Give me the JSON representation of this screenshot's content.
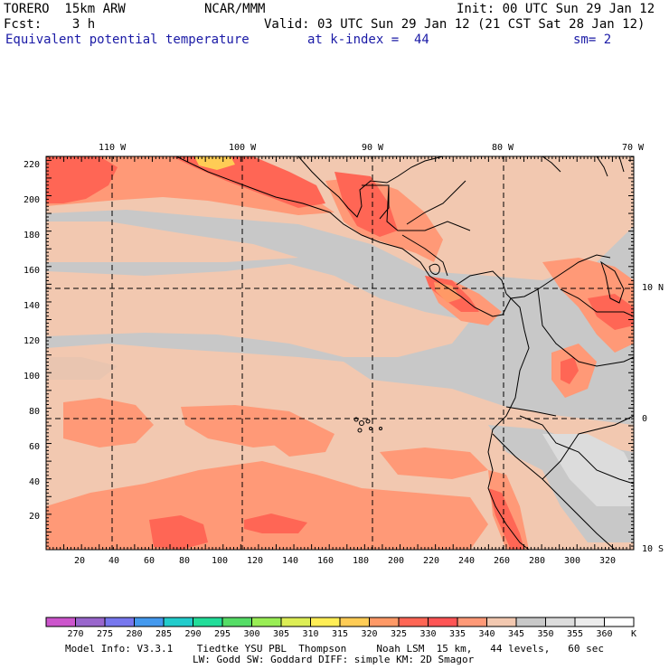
{
  "header": {
    "model": "TORERO  15km ARW",
    "center": "NCAR/MMM",
    "init": "Init: 00 UTC Sun 29 Jan 12",
    "fcst": "Fcst:    3 h",
    "valid": "Valid: 03 UTC Sun 29 Jan 12 (21 CST Sat 28 Jan 12)",
    "field": "Equivalent potential temperature",
    "level": "at k-index =  44",
    "smoothing": "sm= 2"
  },
  "axes": {
    "lon_labels": [
      "110 W",
      "100 W",
      "90 W",
      "80 W",
      "70 W"
    ],
    "lat_labels": [
      "10 N",
      "0",
      "10 S"
    ],
    "y_ticks": [
      "20",
      "40",
      "60",
      "80",
      "100",
      "120",
      "140",
      "160",
      "180",
      "200",
      "220"
    ],
    "x_ticks": [
      "20",
      "40",
      "60",
      "80",
      "100",
      "120",
      "140",
      "160",
      "180",
      "200",
      "220",
      "240",
      "260",
      "280",
      "300",
      "320"
    ]
  },
  "colorbar": {
    "labels": [
      "270",
      "275",
      "280",
      "285",
      "290",
      "295",
      "300",
      "305",
      "310",
      "315",
      "320",
      "325",
      "330",
      "335",
      "340",
      "345",
      "350",
      "355",
      "360"
    ],
    "unit": "K",
    "colors": [
      "#cc55cc",
      "#9966cc",
      "#7777ee",
      "#4499ee",
      "#22cccc",
      "#22dd99",
      "#55dd66",
      "#99ee55",
      "#ddee55",
      "#ffee55",
      "#ffcc55",
      "#ff9966",
      "#ff6655",
      "#ff5555",
      "#ff9977",
      "#f2c8b0",
      "#c8c8c8",
      "#dcdcdc",
      "#ececec",
      "#ffffff"
    ]
  },
  "footer": {
    "line1": "Model Info: V3.3.1    Tiedtke YSU PBL  Thompson     Noah LSM  15 km,   44 levels,   60 sec",
    "line2": "LW: Godd SW: Goddard DIFF: simple KM: 2D Smagor"
  }
}
